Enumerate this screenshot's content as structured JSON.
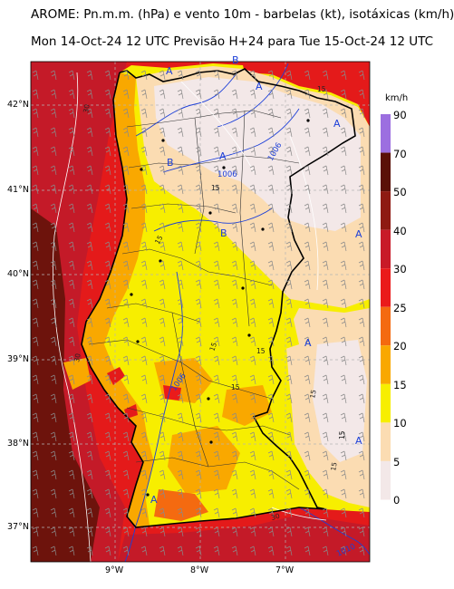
{
  "title_line1": "AROME: Pn.m.m. (hPa) e vento 10m - barbelas (kt), isotáxicas (km/h)",
  "title_line2": "Mon 14-Oct-24 12 UTC Previsão H+24 para Tue 15-Oct-24 12 UTC",
  "lat_labels": [
    "42°N",
    "41°N",
    "40°N",
    "39°N",
    "38°N",
    "37°N"
  ],
  "lon_labels": [
    "9°W",
    "8°W",
    "7°W"
  ],
  "colorbar": {
    "unit": "km/h",
    "labels": [
      "90",
      "70",
      "50",
      "40",
      "30",
      "25",
      "20",
      "15",
      "10",
      "5",
      "0"
    ],
    "colors": [
      "#9c6fe0",
      "#5a1008",
      "#8e1a12",
      "#c81a28",
      "#ea1b1b",
      "#f46a10",
      "#f9a800",
      "#f7ee00",
      "#fbdcb2",
      "#f3e8e8",
      "#ffffff"
    ]
  },
  "pressure_labels": {
    "high": "A",
    "low": "B",
    "isobars": [
      "1006",
      "1006",
      "1006",
      "1010"
    ]
  },
  "isotach_labels": [
    "30",
    "15",
    "15",
    "15",
    "15",
    "15",
    "15",
    "15",
    "15",
    "30",
    "15",
    "30"
  ]
}
